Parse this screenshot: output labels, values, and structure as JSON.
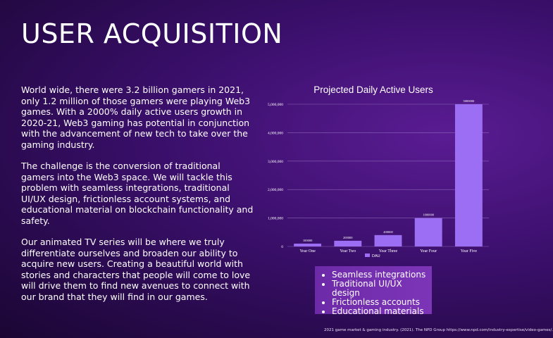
{
  "slide": {
    "title": "USER ACQUISITION",
    "paragraphs": [
      "World wide, there were 3.2 billion gamers in 2021, only 1.2 million of those gamers were playing Web3 games. With a 2000% daily active users growth in 2020-21, Web3 gaming has potential in conjunction with the advancement of new tech to take over the gaming industry.",
      "The challenge is the conversion of traditional gamers into the Web3 space. We will tackle this problem with seamless integrations, traditional UI/UX design, frictionless account systems, and educational material on blockchain functionality and safety.",
      "Our animated TV series will be where we truly differentiate ourselves and broaden our ability to acquire new users. Creating a beautiful world with stories and characters that people will come to love will drive them to find new avenues to connect with our brand that they will find in our games."
    ],
    "bullets": [
      "Seamless integrations",
      "Traditional UI/UX design",
      "Frictionless accounts",
      "Educational materials"
    ],
    "footnote": "2021 game market & gaming industry. (2021). The NPD Group https://www.npd.com/industry-expertise/video-games/."
  },
  "chart_data": {
    "type": "bar",
    "title": "Projected Daily Active Users",
    "categories": [
      "Year One",
      "Year Two",
      "Year Three",
      "Year Four",
      "Year Five"
    ],
    "series": [
      {
        "name": "DAU",
        "values": [
          100000,
          200000,
          400000,
          1000000,
          5000000
        ],
        "value_labels": [
          "100000",
          "200000",
          "400000",
          "1000000",
          "5000000"
        ]
      }
    ],
    "ylim": [
      0,
      5000000
    ],
    "y_ticks": [
      0,
      1000000,
      2000000,
      3000000,
      4000000,
      5000000
    ],
    "y_tick_labels": [
      "0",
      "1,000,000",
      "2,000,000",
      "3,000,000",
      "4,000,000",
      "5,000,000"
    ],
    "grid": true,
    "legend_position": "bottom",
    "colors": {
      "bar": "#9b6ef3",
      "grid": "#9a78c2",
      "text": "#ffffff"
    }
  }
}
